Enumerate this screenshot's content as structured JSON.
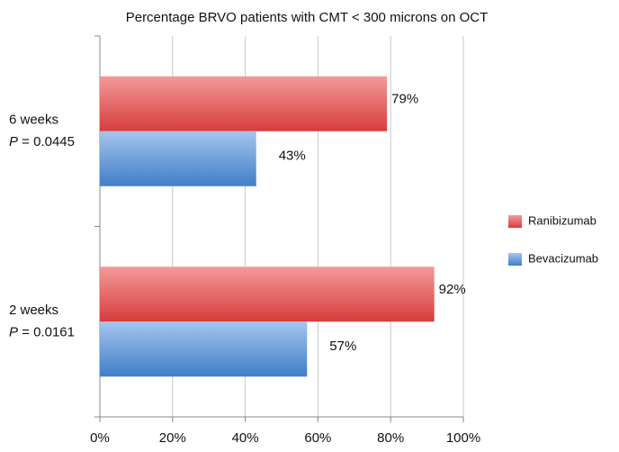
{
  "chart_data": {
    "type": "hbar",
    "title": "Percentage BRVO patients with CMT < 300 microns on OCT",
    "categories": [
      "6 weeks",
      "2 weeks"
    ],
    "p_labels": [
      {
        "symbol": "P",
        "text": " = 0.0445"
      },
      {
        "symbol": "P",
        "text": " = 0.0161"
      }
    ],
    "series": [
      {
        "name": "Ranibizumab",
        "color": "#d83c3c",
        "values": [
          79,
          92
        ],
        "value_labels": [
          "79%",
          "92%"
        ]
      },
      {
        "name": "Bevacizumab",
        "color": "#3f7ec8",
        "values": [
          43,
          57
        ],
        "value_labels": [
          "43%",
          "57%"
        ]
      }
    ],
    "xlim": [
      0,
      100
    ],
    "xticks": [
      {
        "value": 0,
        "label": "0%"
      },
      {
        "value": 20,
        "label": "20%"
      },
      {
        "value": 40,
        "label": "40%"
      },
      {
        "value": 60,
        "label": "60%"
      },
      {
        "value": 80,
        "label": "80%"
      },
      {
        "value": 100,
        "label": "100%"
      }
    ],
    "grid": true,
    "legend": "right"
  }
}
